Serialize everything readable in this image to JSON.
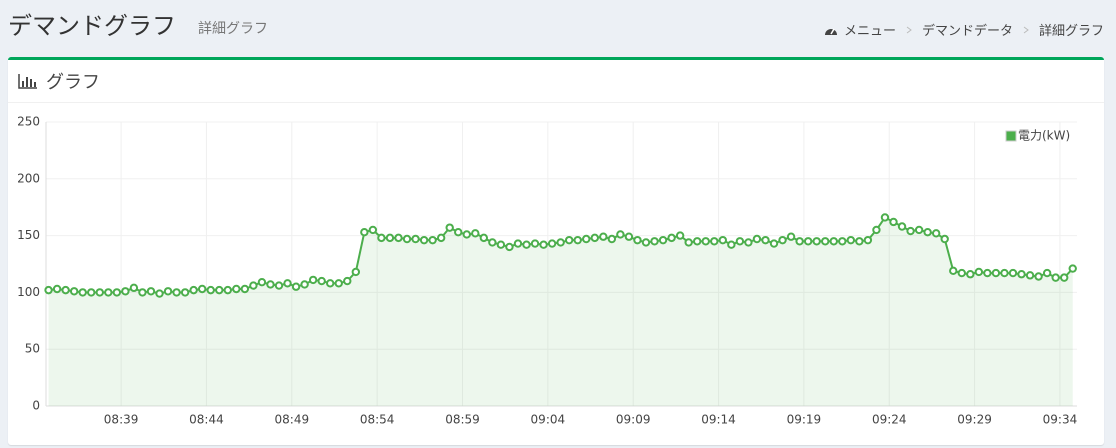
{
  "header": {
    "title": "デマンドグラフ",
    "subtitle": "詳細グラフ",
    "breadcrumbs": [
      "メニュー",
      "デマンドデータ",
      "詳細グラフ"
    ]
  },
  "panel": {
    "title": "グラフ"
  },
  "chart_data": {
    "type": "line",
    "x": [
      514.75,
      515.25,
      515.75,
      516.25,
      516.75,
      517.25,
      517.75,
      518.25,
      518.75,
      519.25,
      519.75,
      520.25,
      520.75,
      521.25,
      521.75,
      522.25,
      522.75,
      523.25,
      523.75,
      524.25,
      524.75,
      525.25,
      525.75,
      526.25,
      526.75,
      527.25,
      527.75,
      528.25,
      528.75,
      529.25,
      529.75,
      530.25,
      530.75,
      531.25,
      531.75,
      532.25,
      532.75,
      533.25,
      533.75,
      534.25,
      534.75,
      535.25,
      535.75,
      536.25,
      536.75,
      537.25,
      537.75,
      538.25,
      538.75,
      539.25,
      539.75,
      540.25,
      540.75,
      541.25,
      541.75,
      542.25,
      542.75,
      543.25,
      543.75,
      544.25,
      544.75,
      545.25,
      545.75,
      546.25,
      546.75,
      547.25,
      547.75,
      548.25,
      548.75,
      549.25,
      549.75,
      550.25,
      550.75,
      551.25,
      551.75,
      552.25,
      552.75,
      553.25,
      553.75,
      554.25,
      554.75,
      555.25,
      555.75,
      556.25,
      556.75,
      557.25,
      557.75,
      558.25,
      558.75,
      559.25,
      559.75,
      560.25,
      560.75,
      561.25,
      561.75,
      562.25,
      562.75,
      563.25,
      563.75,
      564.25,
      564.75,
      565.25,
      565.75,
      566.25,
      566.75,
      567.25,
      567.75,
      568.25,
      568.75,
      569.25,
      569.75,
      570.25,
      570.75,
      571.25,
      571.75,
      572.25,
      572.75,
      573.25,
      573.75,
      574.25,
      574.75
    ],
    "series": [
      {
        "name": "電力(kW)",
        "color": "#4cae4c",
        "values": [
          102,
          103,
          102,
          101,
          100,
          100,
          100,
          100,
          100,
          101,
          104,
          100,
          101,
          99,
          101,
          100,
          100,
          102,
          103,
          102,
          102,
          102,
          103,
          103,
          106,
          109,
          107,
          106,
          108,
          105,
          107,
          111,
          110,
          108,
          108,
          110,
          118,
          153,
          155,
          148,
          148,
          148,
          147,
          147,
          146,
          146,
          148,
          157,
          153,
          151,
          152,
          148,
          144,
          142,
          140,
          143,
          142,
          143,
          142,
          143,
          144,
          146,
          146,
          147,
          148,
          149,
          147,
          151,
          149,
          146,
          144,
          145,
          146,
          148,
          150,
          144,
          145,
          145,
          145,
          146,
          142,
          145,
          144,
          147,
          146,
          143,
          146,
          149,
          145,
          145,
          145,
          145,
          145,
          145,
          146,
          145,
          146,
          155,
          166,
          162,
          158,
          154,
          155,
          153,
          152,
          147,
          119,
          117,
          116,
          118,
          117,
          117,
          117,
          117,
          116,
          115,
          114,
          117,
          113,
          113,
          121
        ]
      }
    ],
    "xlim": [
      514.6,
      575
    ],
    "xticks": [
      {
        "value": 519,
        "label": "08:39"
      },
      {
        "value": 524,
        "label": "08:44"
      },
      {
        "value": 529,
        "label": "08:49"
      },
      {
        "value": 534,
        "label": "08:54"
      },
      {
        "value": 539,
        "label": "08:59"
      },
      {
        "value": 544,
        "label": "09:04"
      },
      {
        "value": 549,
        "label": "09:09"
      },
      {
        "value": 554,
        "label": "09:14"
      },
      {
        "value": 559,
        "label": "09:19"
      },
      {
        "value": 564,
        "label": "09:24"
      },
      {
        "value": 569,
        "label": "09:29"
      },
      {
        "value": 574,
        "label": "09:34"
      }
    ],
    "ylim": [
      0,
      250
    ],
    "yticks": [
      0,
      50,
      100,
      150,
      200,
      250
    ],
    "grid": true,
    "legend": "top-right"
  }
}
